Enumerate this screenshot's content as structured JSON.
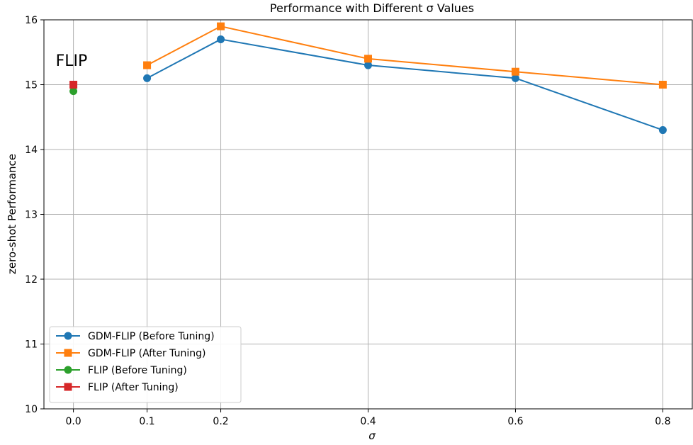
{
  "chart_data": {
    "type": "line",
    "title": "Performance with Different σ Values",
    "xlabel": "σ",
    "ylabel": "zero-shot Performance",
    "xlim": [
      -0.04,
      0.84
    ],
    "ylim": [
      10,
      16
    ],
    "xticks": [
      0.0,
      0.1,
      0.2,
      0.4,
      0.6,
      0.8
    ],
    "xtick_labels": [
      "0.0",
      "0.1",
      "0.2",
      "0.4",
      "0.6",
      "0.8"
    ],
    "yticks": [
      10,
      11,
      12,
      13,
      14,
      15,
      16
    ],
    "ytick_labels": [
      "10",
      "11",
      "12",
      "13",
      "14",
      "15",
      "16"
    ],
    "grid": true,
    "legend_position": "lower-left",
    "annotations": [
      {
        "text": "FLIP",
        "x": 0.0,
        "y": 15.2
      }
    ],
    "series": [
      {
        "name": "GDM-FLIP (Before Tuning)",
        "color": "#1f77b4",
        "marker": "circle",
        "x": [
          0.1,
          0.2,
          0.4,
          0.6,
          0.8
        ],
        "y": [
          15.1,
          15.7,
          15.3,
          15.1,
          14.3
        ]
      },
      {
        "name": "GDM-FLIP (After Tuning)",
        "color": "#ff7f0e",
        "marker": "square",
        "x": [
          0.1,
          0.2,
          0.4,
          0.6,
          0.8
        ],
        "y": [
          15.3,
          15.9,
          15.4,
          15.2,
          15.0
        ]
      },
      {
        "name": "FLIP (Before Tuning)",
        "color": "#2ca02c",
        "marker": "circle",
        "x": [
          0.0
        ],
        "y": [
          14.9
        ]
      },
      {
        "name": "FLIP (After Tuning)",
        "color": "#d62728",
        "marker": "square",
        "x": [
          0.0
        ],
        "y": [
          15.0
        ]
      }
    ]
  }
}
